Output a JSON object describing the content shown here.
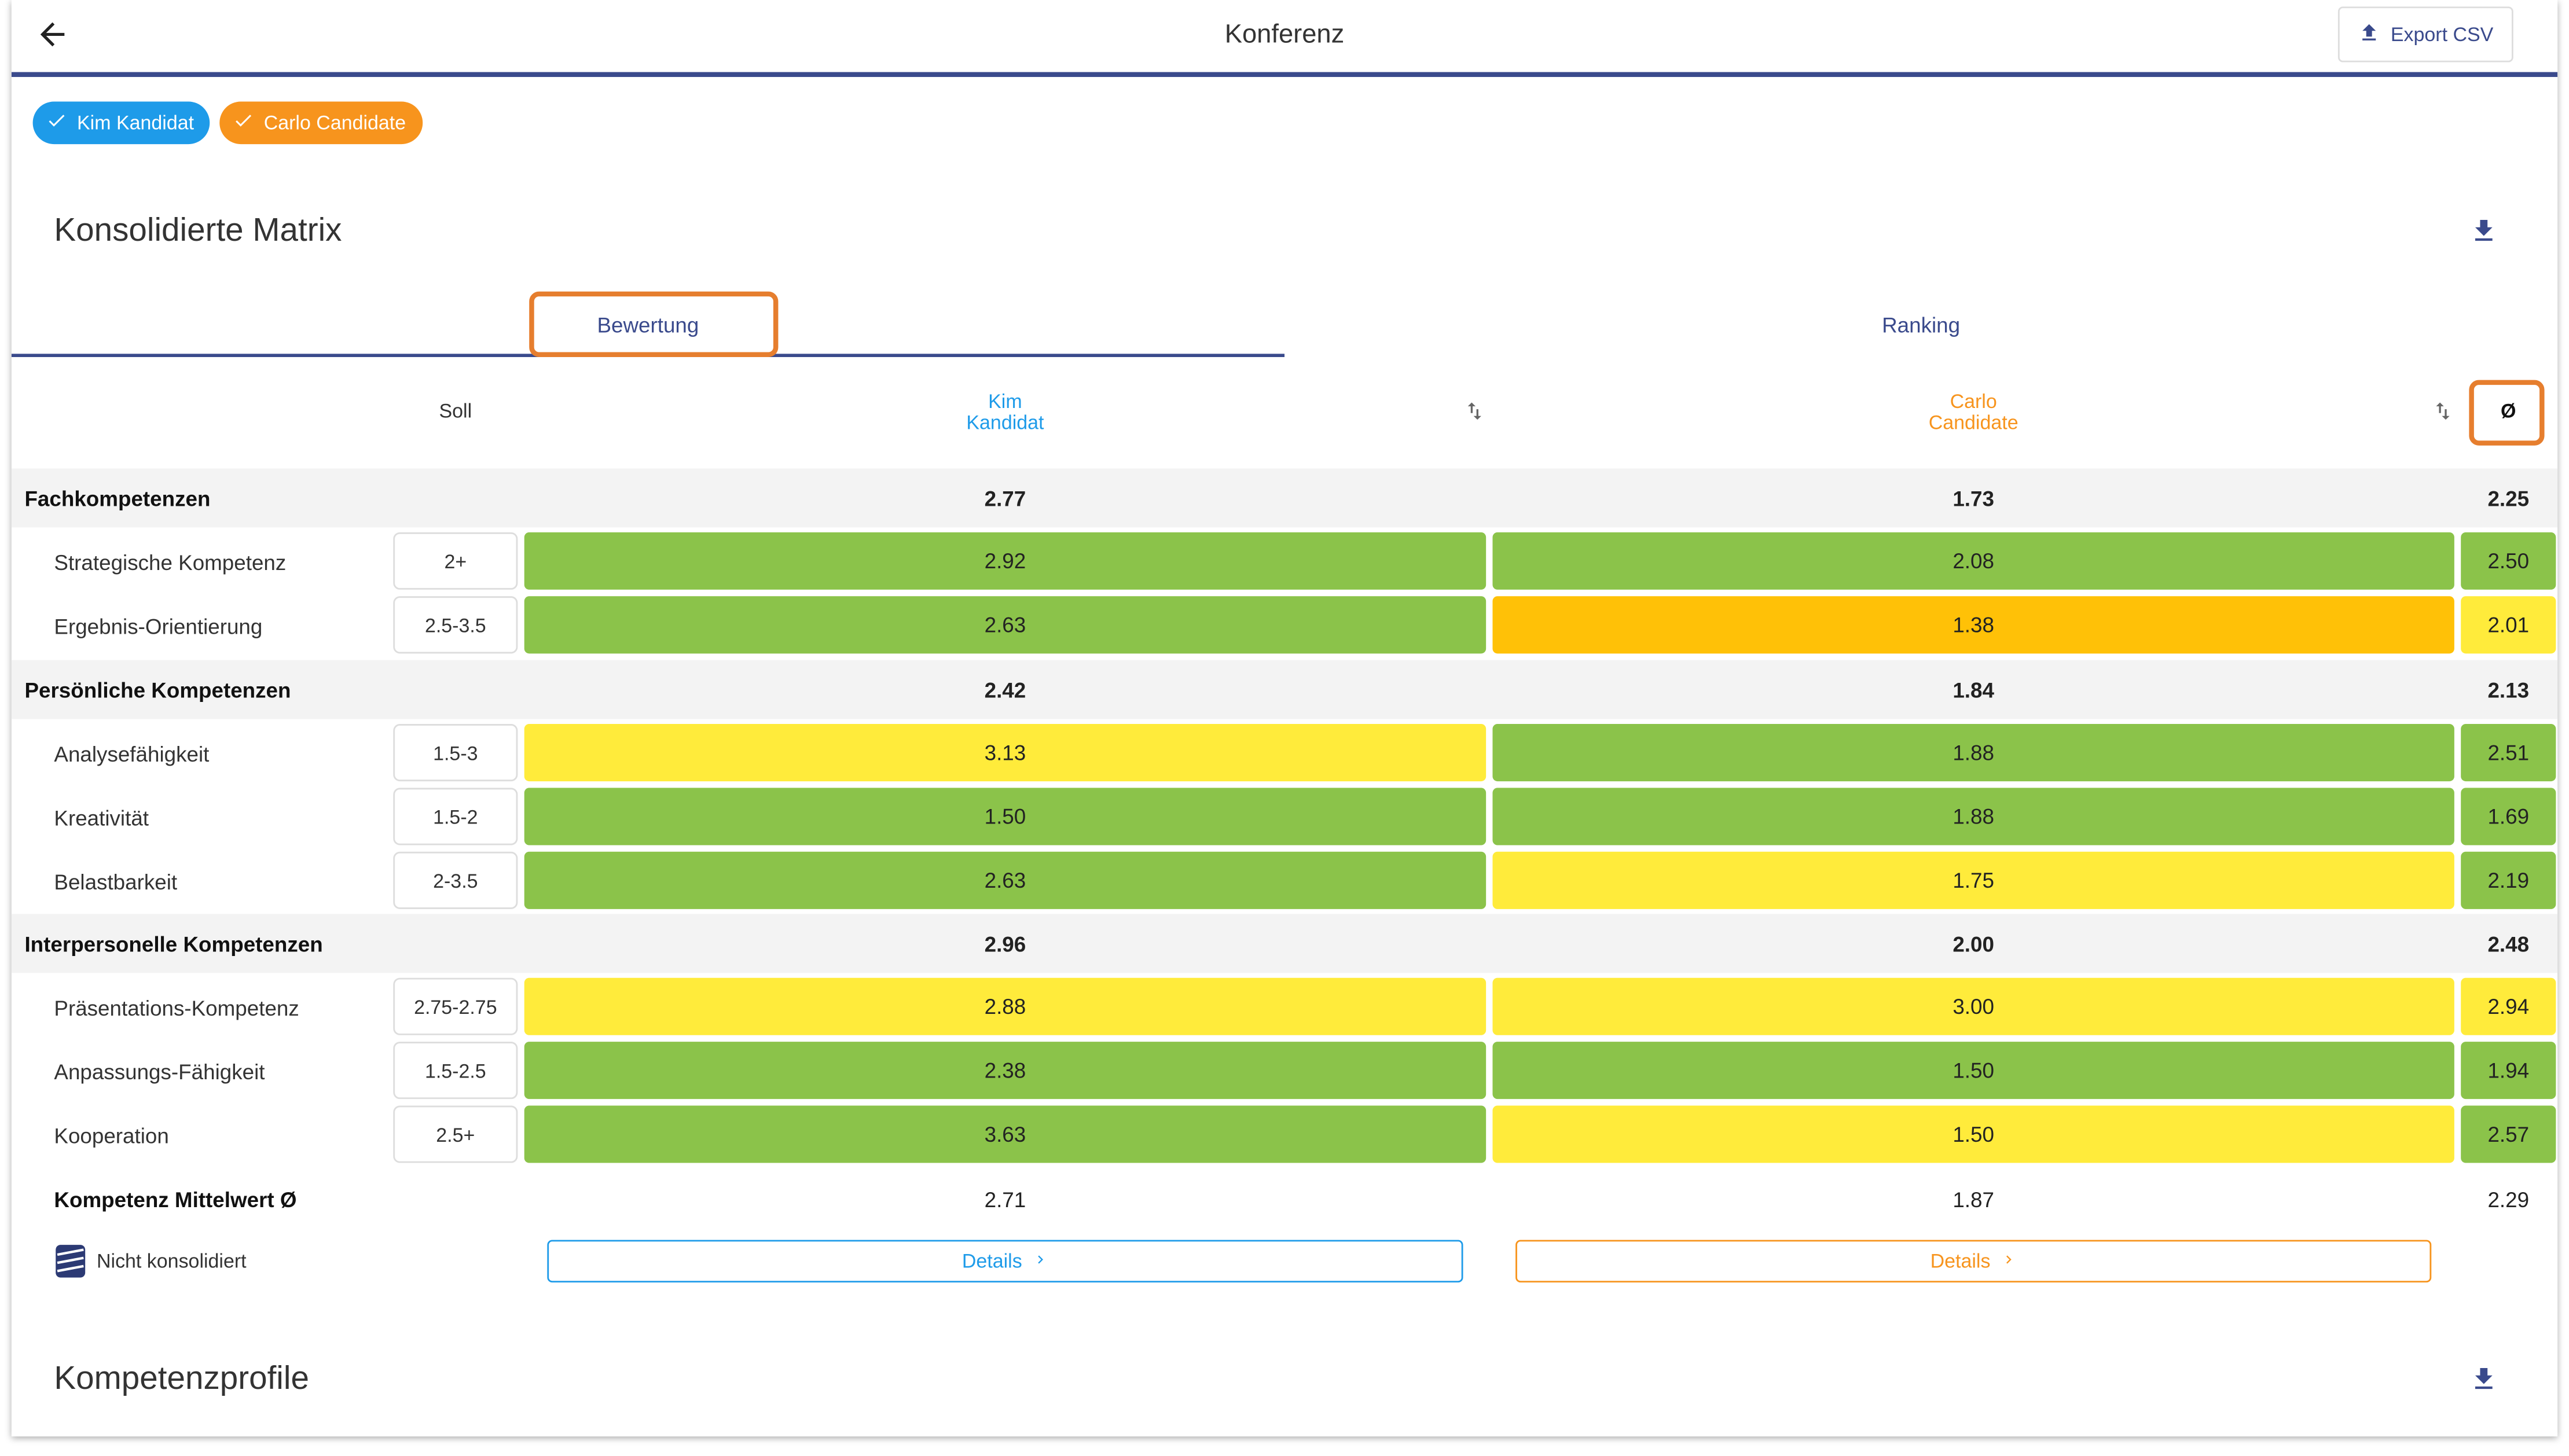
{
  "header": {
    "title": "Konferenz",
    "export_label": "Export CSV"
  },
  "candidates": [
    {
      "name": "Kim Kandidat",
      "header_line1": "Kim",
      "header_line2": "Kandidat",
      "color": "#1e9be9"
    },
    {
      "name": "Carlo Candidate",
      "header_line1": "Carlo",
      "header_line2": "Candidate",
      "color": "#f7941d"
    }
  ],
  "matrix": {
    "title": "Konsolidierte Matrix",
    "tabs": [
      "Bewertung",
      "Ranking"
    ],
    "active_tab": "Bewertung",
    "col_soll": "Soll",
    "col_avg": "Ø",
    "categories": [
      {
        "name": "Fachkompetenzen",
        "kim": "2.77",
        "carlo": "1.73",
        "avg": "2.25",
        "items": [
          {
            "name": "Strategische Kompetenz",
            "soll": "2+",
            "kim": "2.92",
            "carlo": "2.08",
            "avg": "2.50"
          },
          {
            "name": "Ergebnis-Orientierung",
            "soll": "2.5-3.5",
            "kim": "2.63",
            "carlo": "1.38",
            "avg": "2.01"
          }
        ]
      },
      {
        "name": "Persönliche Kompetenzen",
        "kim": "2.42",
        "carlo": "1.84",
        "avg": "2.13",
        "items": [
          {
            "name": "Analysefähigkeit",
            "soll": "1.5-3",
            "kim": "3.13",
            "carlo": "1.88",
            "avg": "2.51"
          },
          {
            "name": "Kreativität",
            "soll": "1.5-2",
            "kim": "1.50",
            "carlo": "1.88",
            "avg": "1.69"
          },
          {
            "name": "Belastbarkeit",
            "soll": "2-3.5",
            "kim": "2.63",
            "carlo": "1.75",
            "avg": "2.19"
          }
        ]
      },
      {
        "name": "Interpersonelle Kompetenzen",
        "kim": "2.96",
        "carlo": "2.00",
        "avg": "2.48",
        "items": [
          {
            "name": "Präsentations-Kompetenz",
            "soll": "2.75-2.75",
            "kim": "2.88",
            "carlo": "3.00",
            "avg": "2.94"
          },
          {
            "name": "Anpassungs-Fähigkeit",
            "soll": "1.5-2.5",
            "kim": "2.38",
            "carlo": "1.50",
            "avg": "1.94"
          },
          {
            "name": "Kooperation",
            "soll": "2.5+",
            "kim": "3.63",
            "carlo": "1.50",
            "avg": "2.57"
          }
        ]
      }
    ],
    "mean_label": "Kompetenz Mittelwert Ø",
    "mean": {
      "kim": "2.71",
      "carlo": "1.87",
      "avg": "2.29"
    },
    "not_consolidated_label": "Nicht konsolidiert",
    "details_label": "Details"
  },
  "profiles": {
    "title": "Kompetenzprofile"
  },
  "status_colors": {
    "green": "#8bc34a",
    "yellow": "#ffeb3b",
    "amber": "#ffc107"
  },
  "cell_status": [
    [
      "green",
      "green",
      "green"
    ],
    [
      "green",
      "amber",
      "yellow"
    ],
    [
      "yellow",
      "green",
      "green"
    ],
    [
      "green",
      "green",
      "green"
    ],
    [
      "green",
      "yellow",
      "green"
    ],
    [
      "yellow",
      "yellow",
      "yellow"
    ],
    [
      "green",
      "green",
      "green"
    ],
    [
      "green",
      "yellow",
      "green"
    ]
  ],
  "icons": {
    "back": "arrow-left-icon",
    "export": "upload-icon",
    "download": "download-icon",
    "sort": "sort-icon",
    "check": "check-icon",
    "chevron": "chevron-right-icon",
    "not_consolidated": "stack-icon"
  }
}
